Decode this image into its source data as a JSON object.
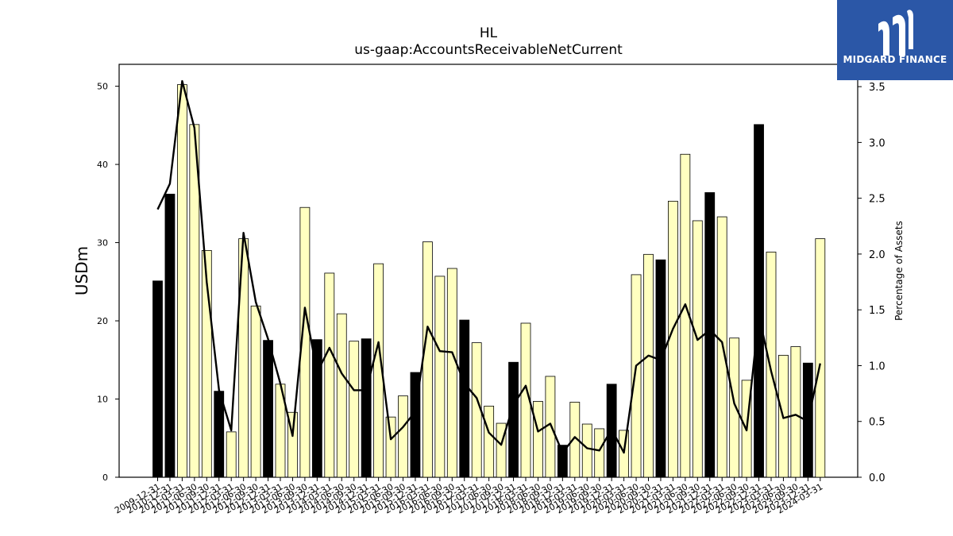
{
  "header": {
    "title": "HL",
    "subtitle": "us-gaap:AccountsReceivableNetCurrent"
  },
  "logo": {
    "text": "MIDGARD FINANCE",
    "color": "#2b57a7"
  },
  "chart_data": {
    "type": "bar",
    "ylabel": "USDm",
    "y2label": "Percentage of Assets",
    "ylim": [
      0,
      52.8
    ],
    "y2lim": [
      0,
      3.7
    ],
    "yticks": [
      0,
      10,
      20,
      30,
      40,
      50
    ],
    "y2ticks": [
      "0.0",
      "0.5",
      "1.0",
      "1.5",
      "2.0",
      "2.5",
      "3.0",
      "3.5"
    ],
    "colors": {
      "annual": "#000000",
      "quarterly": "#ffffc0",
      "line": "#000000"
    },
    "categories": [
      "2009-12-31",
      "2010-12-31",
      "2011-03-31",
      "2011-06-30",
      "2011-09-30",
      "2011-12-31",
      "2012-03-31",
      "2012-06-30",
      "2012-09-30",
      "2012-12-31",
      "2013-03-31",
      "2013-06-30",
      "2013-09-30",
      "2013-12-31",
      "2014-03-31",
      "2014-06-30",
      "2014-09-30",
      "2014-12-31",
      "2015-03-31",
      "2015-06-30",
      "2015-09-30",
      "2015-12-31",
      "2016-03-31",
      "2016-06-30",
      "2016-09-30",
      "2016-12-31",
      "2017-03-31",
      "2017-06-30",
      "2017-09-30",
      "2017-12-31",
      "2018-03-31",
      "2018-06-30",
      "2018-09-30",
      "2018-12-31",
      "2019-03-31",
      "2019-06-30",
      "2019-09-30",
      "2019-12-31",
      "2020-03-31",
      "2020-06-30",
      "2020-09-30",
      "2020-12-31",
      "2021-03-31",
      "2021-06-30",
      "2021-09-30",
      "2021-12-31",
      "2022-03-31",
      "2022-06-30",
      "2022-09-30",
      "2022-12-31",
      "2023-03-31",
      "2023-06-30",
      "2023-09-30",
      "2023-12-31",
      "2024-03-31"
    ],
    "series": [
      {
        "values": [
          25.1,
          36.2,
          50.2,
          45.1,
          29.0,
          11.0,
          5.8,
          30.5,
          21.9,
          17.5,
          11.9,
          8.3,
          34.5,
          17.6,
          26.1,
          20.9,
          17.4,
          17.7,
          27.3,
          7.7,
          10.4,
          13.4,
          30.1,
          25.7,
          26.7,
          20.1,
          17.2,
          9.1,
          6.9,
          14.7,
          19.7,
          9.7,
          12.9,
          4.1,
          9.6,
          6.8,
          6.2,
          11.9,
          6.0,
          25.9,
          28.5,
          27.8,
          35.3,
          41.3,
          32.8,
          36.4,
          33.3,
          17.8,
          12.4,
          45.1,
          28.8,
          15.6,
          16.7,
          14.6,
          30.5
        ],
        "annual": [
          true,
          true,
          false,
          false,
          false,
          true,
          false,
          false,
          false,
          true,
          false,
          false,
          false,
          true,
          false,
          false,
          false,
          true,
          false,
          false,
          false,
          true,
          false,
          false,
          false,
          true,
          false,
          false,
          false,
          true,
          false,
          false,
          false,
          true,
          false,
          false,
          false,
          true,
          false,
          false,
          false,
          true,
          false,
          false,
          false,
          true,
          false,
          false,
          false,
          true,
          false,
          false,
          false,
          true,
          false
        ]
      },
      {
        "name": "Percentage of Assets",
        "axis": "right",
        "values": [
          2.4,
          2.63,
          3.55,
          3.13,
          1.75,
          0.78,
          0.42,
          2.19,
          1.57,
          1.24,
          0.84,
          0.37,
          1.52,
          0.94,
          1.16,
          0.93,
          0.78,
          0.78,
          1.21,
          0.34,
          0.45,
          0.59,
          1.35,
          1.13,
          1.12,
          0.84,
          0.71,
          0.4,
          0.29,
          0.65,
          0.82,
          0.41,
          0.48,
          0.22,
          0.36,
          0.26,
          0.24,
          0.43,
          0.22,
          1.0,
          1.09,
          1.05,
          1.33,
          1.55,
          1.23,
          1.32,
          1.21,
          0.66,
          0.42,
          1.45,
          0.95,
          0.53,
          0.56,
          0.5,
          1.02
        ]
      }
    ]
  }
}
